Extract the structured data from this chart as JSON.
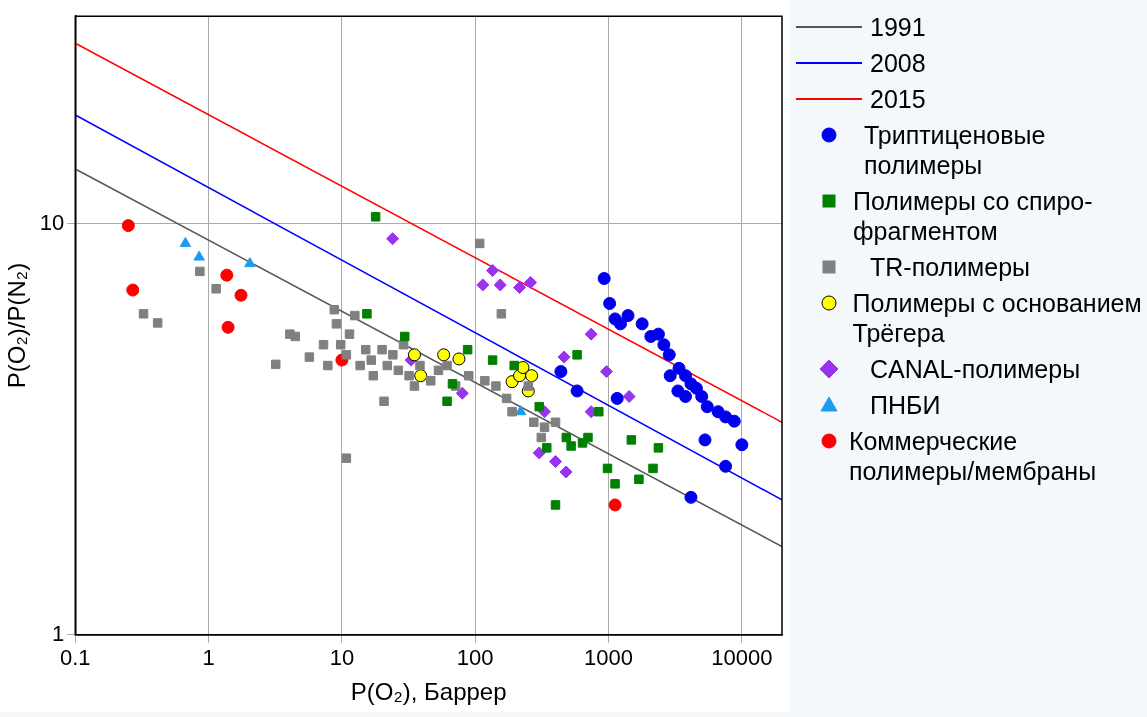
{
  "chart_data": {
    "type": "scatter",
    "xlabel": "P(O₂), Баррер",
    "ylabel": "P(O₂)/P(N₂)",
    "log": "xy",
    "xlim": [
      0.1,
      20000
    ],
    "ylim": [
      1,
      32
    ],
    "xticks": [
      0.1,
      1,
      10,
      100,
      1000,
      10000
    ],
    "yticks": [
      1,
      10
    ],
    "grid": true,
    "legend": "right",
    "series": [
      {
        "name": "1991",
        "type": "line",
        "color": "#555555",
        "marker": "none",
        "x": [
          0.1,
          20000
        ],
        "values": [
          13.6,
          1.64
        ]
      },
      {
        "name": "2008",
        "type": "line",
        "color": "#0000ff",
        "marker": "none",
        "x": [
          0.1,
          20000
        ],
        "values": [
          18.4,
          2.13
        ]
      },
      {
        "name": "2015",
        "type": "line",
        "color": "#ff0000",
        "marker": "none",
        "x": [
          0.1,
          20000
        ],
        "values": [
          27.5,
          3.29
        ]
      },
      {
        "name": "Триптиценовые полимеры",
        "color": "#0000ee",
        "marker": "circle",
        "x": [
          927,
          1019,
          1119,
          1228,
          1400,
          1786,
          2075,
          2366,
          2600,
          2853,
          3378,
          3778,
          4150,
          3311,
          4560,
          5000,
          5500,
          6630,
          7550,
          8770,
          10000,
          7550,
          5290,
          4150,
          439,
          581,
          1161,
          3778,
          2900
        ],
        "values": [
          7.36,
          6.4,
          5.87,
          5.71,
          5.98,
          5.71,
          5.32,
          5.39,
          5.08,
          4.8,
          4.45,
          4.27,
          4.08,
          3.92,
          3.98,
          3.8,
          3.59,
          3.49,
          3.39,
          3.31,
          2.9,
          2.57,
          2.98,
          2.16,
          4.37,
          3.92,
          3.76,
          3.8,
          4.27
        ]
      },
      {
        "name": "Полимеры со спиро-фрагментом",
        "color": "#008000",
        "marker": "square",
        "x": [
          17.9,
          15.4,
          29.6,
          87.7,
          135,
          67.5,
          61.5,
          196,
          302,
          581,
          344,
          400,
          482,
          638,
          701,
          845,
          1482,
          2366,
          2155,
          982,
          1119,
          1690,
          524
        ],
        "values": [
          10.4,
          6.04,
          5.32,
          4.94,
          4.66,
          4.08,
          3.7,
          4.52,
          3.59,
          4.8,
          2.85,
          2.07,
          3.02,
          2.93,
          3.02,
          3.49,
          2.98,
          2.85,
          2.54,
          2.54,
          2.33,
          2.39,
          2.88
        ]
      },
      {
        "name": "TR-полимеры",
        "color": "#808080",
        "marker": "square",
        "x": [
          0.325,
          0.415,
          0.86,
          1.14,
          3.19,
          4.07,
          4.47,
          5.7,
          7.28,
          7.84,
          8.77,
          9.1,
          9.8,
          10.8,
          12.5,
          11.4,
          13.7,
          15.1,
          10.8,
          17.2,
          20,
          21.9,
          24.1,
          26.5,
          29,
          31.9,
          38.5,
          46.4,
          53,
          61.5,
          71.4,
          89.4,
          108,
          118,
          143,
          157,
          172,
          189,
          250,
          275,
          331,
          400,
          313,
          20.7,
          35,
          16.6
        ],
        "values": [
          6.04,
          5.74,
          7.66,
          6.95,
          4.55,
          5.39,
          5.32,
          4.74,
          5.08,
          4.52,
          6.18,
          5.71,
          5.08,
          4.8,
          5.98,
          5.39,
          4.52,
          4.94,
          2.69,
          4.27,
          4.94,
          4.52,
          4.8,
          4.4,
          5.08,
          4.27,
          4.52,
          4.15,
          4.4,
          4.52,
          4.03,
          4.27,
          8.96,
          4.15,
          4.03,
          6.04,
          3.76,
          3.49,
          4.03,
          3.29,
          3.2,
          3.29,
          3.02,
          3.7,
          4.03,
          4.66
        ]
      },
      {
        "name": "Полимеры с основанием Трёгера",
        "color": "#ffff00",
        "marker": "circle",
        "x": [
          35,
          39,
          58,
          75.5,
          189,
          215,
          228,
          250,
          265
        ],
        "values": [
          4.8,
          4.27,
          4.8,
          4.69,
          4.13,
          4.27,
          4.47,
          3.92,
          4.27
        ]
      },
      {
        "name": "CANAL-полимеры",
        "color": "#9933ee",
        "marker": "diamond",
        "x": [
          24,
          114,
          135,
          154,
          215,
          260,
          33,
          80,
          464,
          741,
          964,
          1427,
          741,
          302,
          400,
          480,
          331
        ],
        "values": [
          9.2,
          7.1,
          7.7,
          7.1,
          7.0,
          7.2,
          4.66,
          3.87,
          4.74,
          5.39,
          4.37,
          3.8,
          3.49,
          2.77,
          2.64,
          2.49,
          3.49
        ]
      },
      {
        "name": "ПНБИ",
        "color": "#1e9bef",
        "marker": "triangle",
        "x": [
          0.67,
          0.85,
          2.04,
          219
        ],
        "values": [
          8.96,
          8.3,
          8.0,
          3.49
        ]
      },
      {
        "name": "Коммерческие полимеры/мембраны",
        "color": "#ff0000",
        "marker": "circle",
        "x": [
          0.25,
          0.27,
          1.37,
          1.4,
          1.75,
          10,
          1120
        ],
        "values": [
          9.9,
          6.9,
          7.5,
          5.6,
          6.7,
          4.66,
          2.07
        ]
      }
    ]
  }
}
